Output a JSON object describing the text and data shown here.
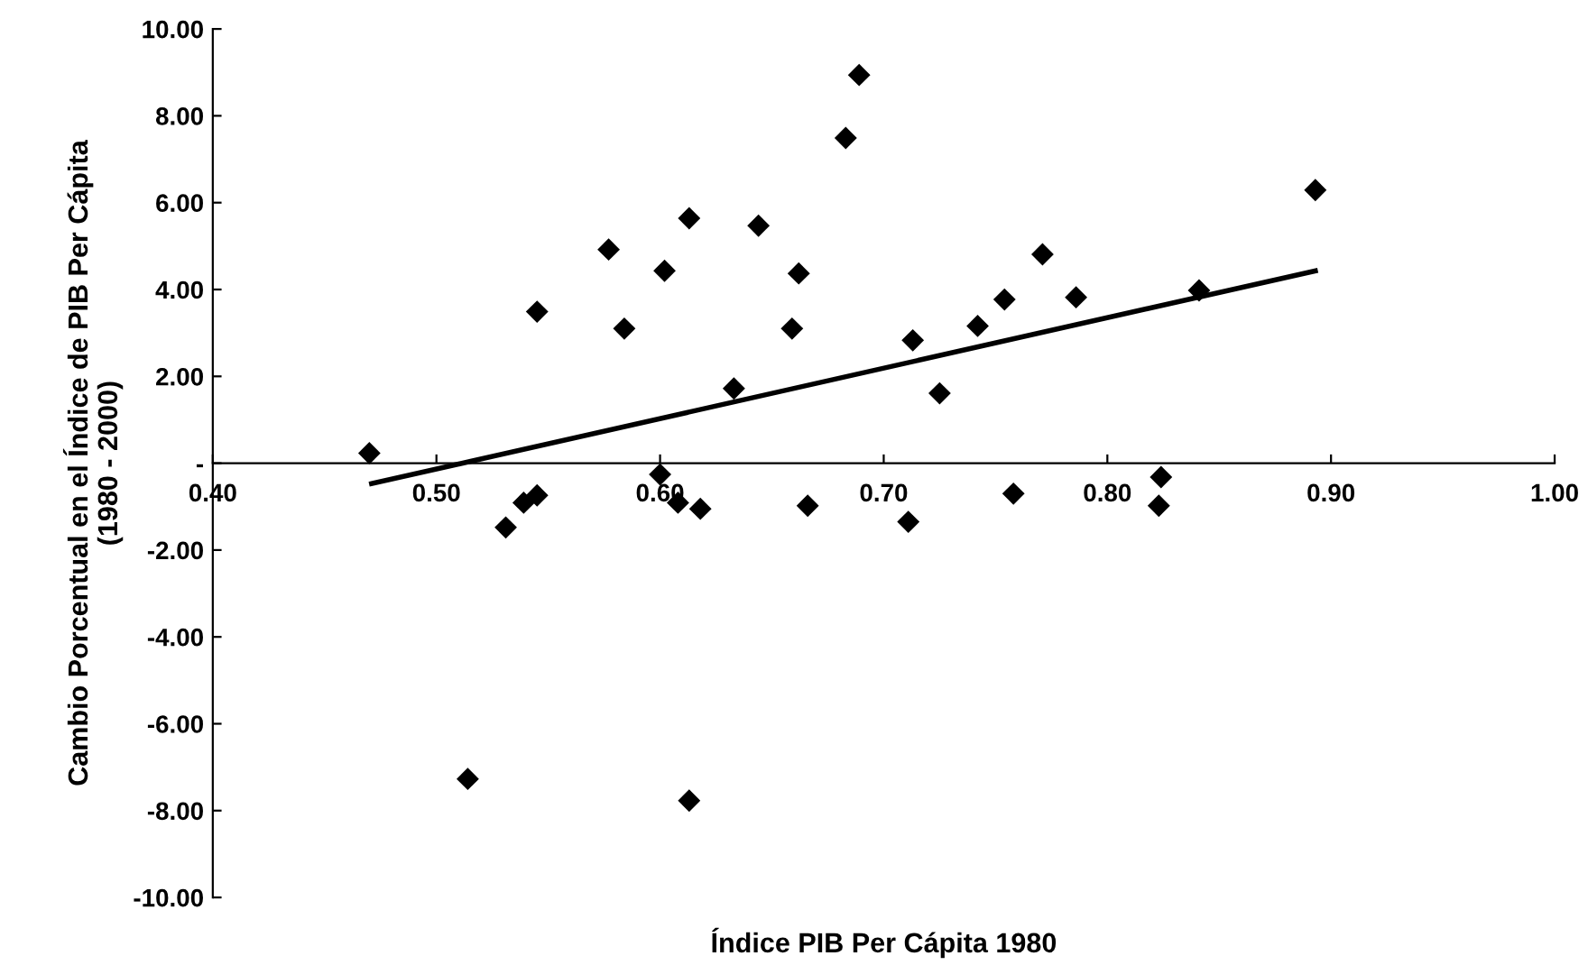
{
  "chart_data": {
    "type": "scatter",
    "xlabel": "Índice PIB Per Cápita 1980",
    "ylabel": "Cambio Porcentual en el Índice de PIB Per Cápita\n(1980 - 2000)",
    "xlim": [
      0.4,
      1.0
    ],
    "ylim": [
      -10,
      10
    ],
    "xticks": [
      {
        "value": 0.4,
        "label": "0.40"
      },
      {
        "value": 0.5,
        "label": "0.50"
      },
      {
        "value": 0.6,
        "label": "0.60"
      },
      {
        "value": 0.7,
        "label": "0.70"
      },
      {
        "value": 0.8,
        "label": "0.80"
      },
      {
        "value": 0.9,
        "label": "0.90"
      },
      {
        "value": 1.0,
        "label": "1.00"
      }
    ],
    "yticks": [
      {
        "value": -10,
        "label": "-10.00"
      },
      {
        "value": -8,
        "label": "-8.00"
      },
      {
        "value": -6,
        "label": "-6.00"
      },
      {
        "value": -4,
        "label": "-4.00"
      },
      {
        "value": -2,
        "label": "-2.00"
      },
      {
        "value": 0,
        "label": "-"
      },
      {
        "value": 2,
        "label": "2.00"
      },
      {
        "value": 4,
        "label": "4.00"
      },
      {
        "value": 6,
        "label": "6.00"
      },
      {
        "value": 8,
        "label": "8.00"
      },
      {
        "value": 10,
        "label": "10.00"
      }
    ],
    "grid": false,
    "legend": false,
    "series": [
      {
        "color": "#000000",
        "marker": "diamond",
        "x": [
          0.47,
          0.545,
          0.577,
          0.584,
          0.602,
          0.613,
          0.644,
          0.662,
          0.659,
          0.633,
          0.683,
          0.689,
          0.713,
          0.6,
          0.539,
          0.545,
          0.531,
          0.608,
          0.618,
          0.666,
          0.711,
          0.514,
          0.613,
          0.725,
          0.742,
          0.754,
          0.771,
          0.786,
          0.841,
          0.893,
          0.758,
          0.824,
          0.823
        ],
        "values": [
          0.23,
          3.49,
          4.92,
          3.1,
          4.43,
          5.64,
          5.47,
          4.37,
          3.1,
          1.72,
          7.49,
          8.94,
          2.83,
          -0.26,
          -0.91,
          -0.74,
          -1.48,
          -0.91,
          -1.05,
          -0.98,
          -1.35,
          -7.27,
          -7.77,
          1.61,
          3.16,
          3.77,
          4.81,
          3.82,
          3.98,
          6.29,
          -0.7,
          -0.32,
          -0.98
        ]
      },
      {
        "type": "line",
        "color": "#000000",
        "marker": "none",
        "line_style": "solid",
        "x": [
          0.471,
          0.893
        ],
        "values": [
          -0.47,
          4.43
        ]
      }
    ]
  }
}
